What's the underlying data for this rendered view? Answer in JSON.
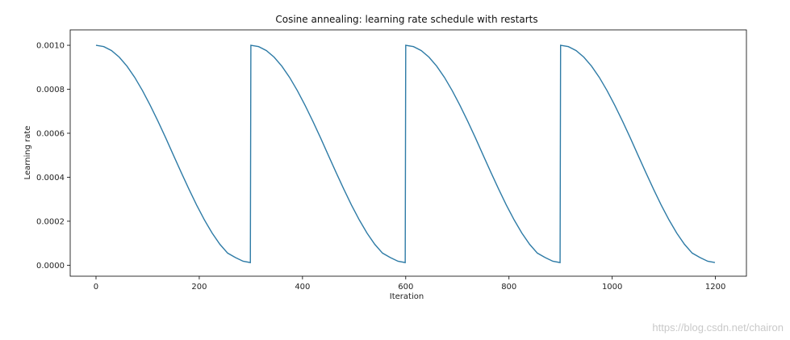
{
  "chart_data": {
    "type": "line",
    "title": "Cosine annealing: learning rate schedule with restarts",
    "xlabel": "Iteration",
    "ylabel": "Learning rate",
    "xlim": [
      -50,
      1260
    ],
    "ylim": [
      -5e-05,
      0.00107
    ],
    "xticks": [
      0,
      200,
      400,
      600,
      800,
      1000,
      1200
    ],
    "xtick_labels": [
      "0",
      "200",
      "400",
      "600",
      "800",
      "1000",
      "1200"
    ],
    "yticks": [
      0.0,
      0.0002,
      0.0004,
      0.0006,
      0.0008,
      0.001
    ],
    "ytick_labels": [
      "0.0000",
      "0.0002",
      "0.0004",
      "0.0006",
      "0.0008",
      "0.0010"
    ],
    "grid": false,
    "series_color": "#2e7ba6",
    "series": [
      {
        "x": [
          0,
          15,
          30,
          45,
          60,
          75,
          90,
          105,
          120,
          135,
          150,
          165,
          180,
          195,
          210,
          225,
          240,
          255,
          270,
          285,
          299,
          300,
          315,
          330,
          345,
          360,
          375,
          390,
          405,
          420,
          435,
          450,
          465,
          480,
          495,
          510,
          525,
          540,
          555,
          570,
          585,
          599,
          600,
          615,
          630,
          645,
          660,
          675,
          690,
          705,
          720,
          735,
          750,
          765,
          780,
          795,
          810,
          825,
          840,
          855,
          870,
          885,
          899,
          900,
          915,
          930,
          945,
          960,
          975,
          990,
          1005,
          1020,
          1035,
          1050,
          1065,
          1080,
          1095,
          1110,
          1125,
          1140,
          1155,
          1170,
          1185,
          1199
        ],
        "y": [
          0.001,
          0.000994,
          0.000976,
          0.000946,
          0.000905,
          0.000854,
          0.000794,
          0.000727,
          0.000655,
          0.000579,
          0.0005,
          0.000422,
          0.000346,
          0.000273,
          0.000206,
          0.000146,
          9.5e-05,
          5.5e-05,
          3.5e-05,
          1.8e-05,
          1.2e-05,
          0.001,
          0.000994,
          0.000976,
          0.000946,
          0.000905,
          0.000854,
          0.000794,
          0.000727,
          0.000655,
          0.000579,
          0.0005,
          0.000422,
          0.000346,
          0.000273,
          0.000206,
          0.000146,
          9.5e-05,
          5.5e-05,
          3.5e-05,
          1.8e-05,
          1.2e-05,
          0.001,
          0.000994,
          0.000976,
          0.000946,
          0.000905,
          0.000854,
          0.000794,
          0.000727,
          0.000655,
          0.000579,
          0.0005,
          0.000422,
          0.000346,
          0.000273,
          0.000206,
          0.000146,
          9.5e-05,
          5.5e-05,
          3.5e-05,
          1.8e-05,
          1.2e-05,
          0.001,
          0.000994,
          0.000976,
          0.000946,
          0.000905,
          0.000854,
          0.000794,
          0.000727,
          0.000655,
          0.000579,
          0.0005,
          0.000422,
          0.000346,
          0.000273,
          0.000206,
          0.000146,
          9.5e-05,
          5.5e-05,
          3.5e-05,
          1.8e-05,
          1.2e-05
        ]
      }
    ]
  },
  "watermark": "https://blog.csdn.net/chairon"
}
